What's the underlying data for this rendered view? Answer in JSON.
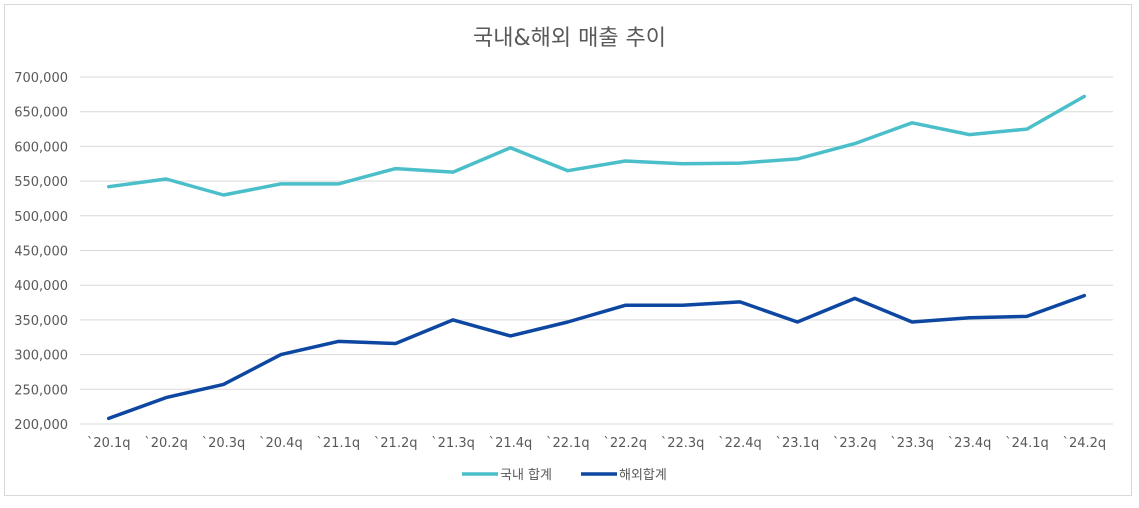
{
  "chart_data": {
    "type": "line",
    "title": "국내&해외 매출 추이",
    "categories": [
      "`20.1q",
      "`20.2q",
      "`20.3q",
      "`20.4q",
      "`21.1q",
      "`21.2q",
      "`21.3q",
      "`21.4q",
      "`22.1q",
      "`22.2q",
      "`22.3q",
      "`22.4q",
      "`23.1q",
      "`23.2q",
      "`23.3q",
      "`23.4q",
      "`24.1q",
      "`24.2q"
    ],
    "ylim": [
      200000,
      700000
    ],
    "yticks": [
      "200,000",
      "250,000",
      "300,000",
      "350,000",
      "400,000",
      "450,000",
      "500,000",
      "550,000",
      "600,000",
      "650,000",
      "700,000"
    ],
    "grid": true,
    "legend": "bottom",
    "series": [
      {
        "name": "국내 합계",
        "color": "#4bbfc9",
        "values": [
          542000,
          553000,
          530000,
          546000,
          546000,
          568000,
          563000,
          598000,
          565000,
          579000,
          575000,
          576000,
          582000,
          604000,
          634000,
          617000,
          625000,
          672000
        ]
      },
      {
        "name": "해외합계",
        "color": "#0d47a1",
        "values": [
          208000,
          238000,
          257000,
          300000,
          319000,
          316000,
          350000,
          327000,
          347000,
          371000,
          371000,
          376000,
          347000,
          381000,
          347000,
          353000,
          355000,
          385000
        ]
      }
    ]
  }
}
